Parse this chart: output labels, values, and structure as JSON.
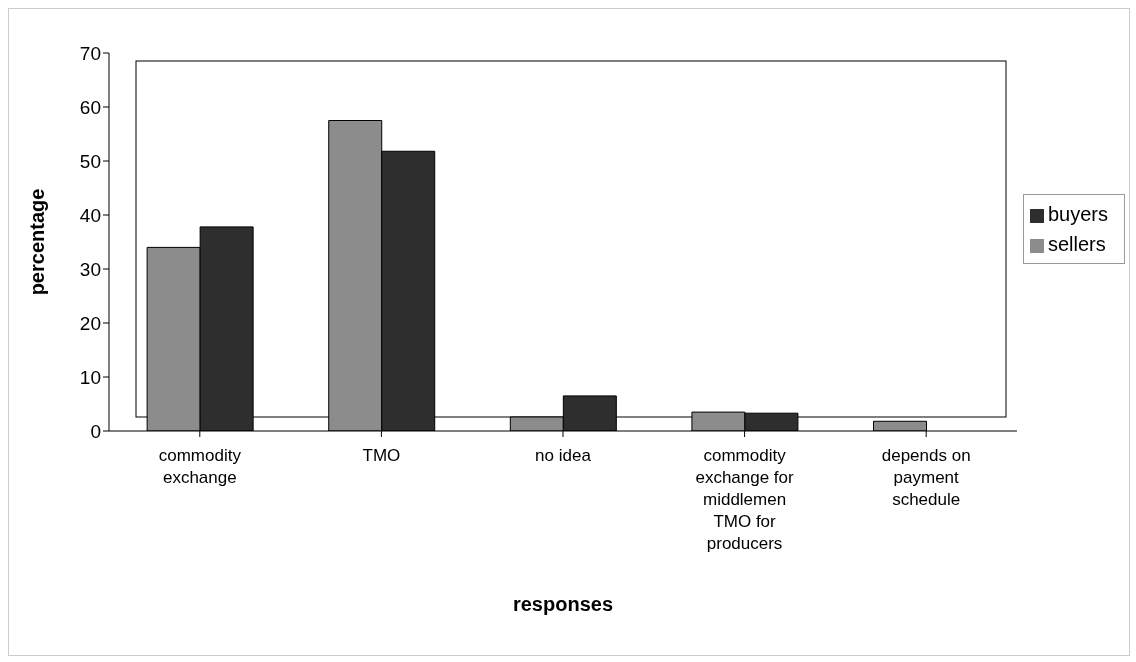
{
  "chart_data": {
    "type": "bar",
    "xlabel": "responses",
    "ylabel": "percentage",
    "categories": [
      "commodity exchange",
      "TMO",
      "no idea",
      "commodity exchange for middlemen TMO for producers",
      "depends on payment schedule"
    ],
    "series": [
      {
        "name": "sellers",
        "color": "#8c8c8c",
        "values": [
          34,
          57.5,
          2.6,
          3.5,
          1.8
        ]
      },
      {
        "name": "buyers",
        "color": "#2e2e2e",
        "values": [
          37.8,
          51.8,
          6.5,
          3.3,
          0
        ]
      }
    ],
    "ylim": [
      0,
      70
    ],
    "yticks": [
      0,
      10,
      20,
      30,
      40,
      50,
      60,
      70
    ],
    "grid": false,
    "legend": "right"
  }
}
